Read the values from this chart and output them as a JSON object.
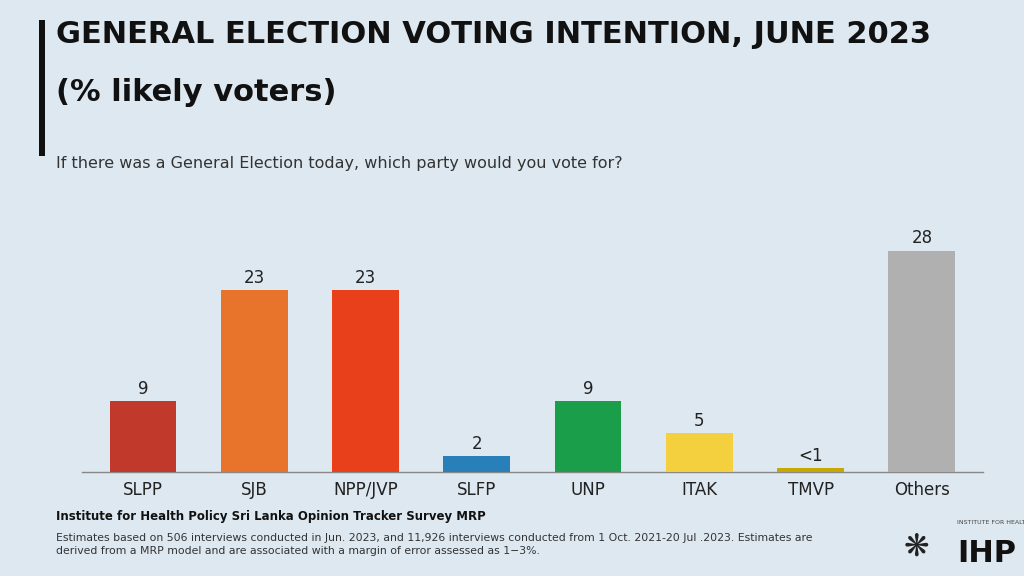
{
  "title_line1": "GENERAL ELECTION VOTING INTENTION, JUNE 2023",
  "title_line2": "(% likely voters)",
  "subtitle": "If there was a General Election today, which party would you vote for?",
  "categories": [
    "SLPP",
    "SJB",
    "NPP/JVP",
    "SLFP",
    "UNP",
    "ITAK",
    "TMVP",
    "Others"
  ],
  "values": [
    9,
    23,
    23,
    2,
    9,
    5,
    0.5,
    28
  ],
  "labels": [
    "9",
    "23",
    "23",
    "2",
    "9",
    "5",
    "<1",
    "28"
  ],
  "colors": [
    "#c0392b",
    "#e8732a",
    "#e8401a",
    "#2980b9",
    "#1a9e4a",
    "#f4d03f",
    "#c8a800",
    "#b0b0b0"
  ],
  "background_color": "#dde8f0",
  "footer_bold": "Institute for Health Policy Sri Lanka Opinion Tracker Survey MRP",
  "footer_normal": "Estimates based on 506 interviews conducted in Jun. 2023, and 11,926 interviews conducted from 1 Oct. 2021-20 Jul .2023. Estimates are\nderived from a MRP model and are associated with a margin of error assessed as 1−3%.",
  "ylim": [
    0,
    32
  ],
  "accent_color": "#111111"
}
